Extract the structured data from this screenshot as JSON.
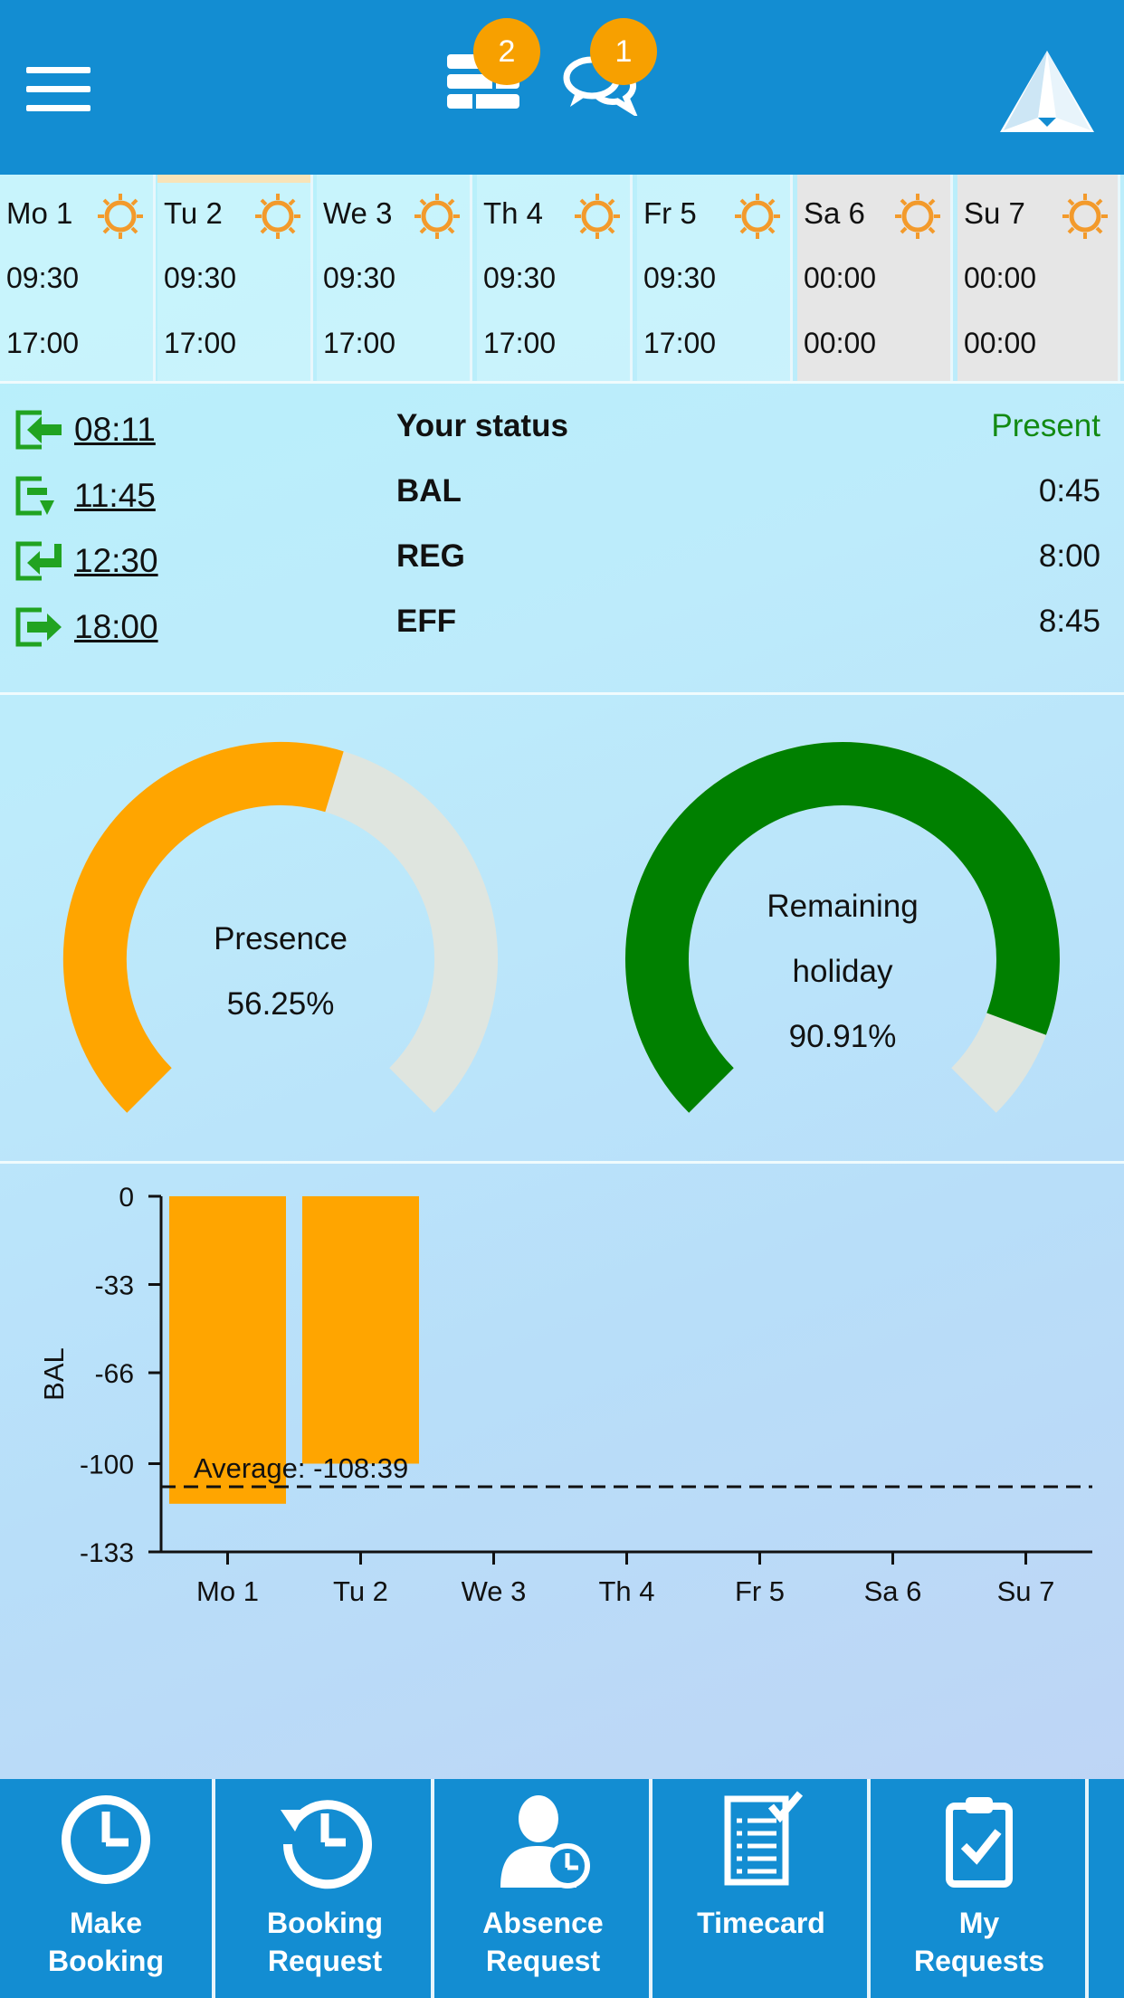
{
  "header": {
    "notifications_badge": "2",
    "messages_badge": "1"
  },
  "week": [
    {
      "name": "Mo 1",
      "start": "09:30",
      "end": "17:00",
      "weekend": false,
      "selected": false
    },
    {
      "name": "Tu 2",
      "start": "09:30",
      "end": "17:00",
      "weekend": false,
      "selected": true
    },
    {
      "name": "We 3",
      "start": "09:30",
      "end": "17:00",
      "weekend": false,
      "selected": false
    },
    {
      "name": "Th 4",
      "start": "09:30",
      "end": "17:00",
      "weekend": false,
      "selected": false
    },
    {
      "name": "Fr 5",
      "start": "09:30",
      "end": "17:00",
      "weekend": false,
      "selected": false
    },
    {
      "name": "Sa 6",
      "start": "00:00",
      "end": "00:00",
      "weekend": true,
      "selected": false
    },
    {
      "name": "Su 7",
      "start": "00:00",
      "end": "00:00",
      "weekend": true,
      "selected": false
    }
  ],
  "bookings": [
    {
      "time": "08:11",
      "icon": "clock-in-icon"
    },
    {
      "time": "11:45",
      "icon": "break-start-icon"
    },
    {
      "time": "12:30",
      "icon": "break-end-icon"
    },
    {
      "time": "18:00",
      "icon": "clock-out-icon"
    }
  ],
  "status": {
    "rows": [
      {
        "label": "Your status",
        "value": "Present"
      },
      {
        "label": "BAL",
        "value": "0:45"
      },
      {
        "label": "REG",
        "value": "8:00"
      },
      {
        "label": "EFF",
        "value": "8:45"
      }
    ]
  },
  "gauges": {
    "presence": {
      "line1": "Presence",
      "value_text": "56.25%",
      "fraction": 0.5625,
      "color": "#ffa500",
      "track": "#dfe5df"
    },
    "holiday": {
      "line1": "Remaining",
      "line2": "holiday",
      "value_text": "90.91%",
      "fraction": 0.9091,
      "color": "#008000",
      "track": "#dfe5df"
    }
  },
  "chart_data": {
    "type": "bar",
    "categories": [
      "Mo 1",
      "Tu 2",
      "We 3",
      "Th 4",
      "Fr 5",
      "Sa 6",
      "Su 7"
    ],
    "values": [
      -115,
      -100,
      null,
      null,
      null,
      null,
      null
    ],
    "ylabel": "BAL",
    "ylim": [
      -133,
      0
    ],
    "yticks": [
      "0",
      "-33",
      "-66",
      "-100",
      "-133"
    ],
    "ytick_values": [
      0,
      -33,
      -66,
      -100,
      -133
    ],
    "average": {
      "label": "Average: -108:39",
      "value": -108.65
    },
    "color": "#ffa500"
  },
  "nav": [
    {
      "line1": "Make",
      "line2": "Booking",
      "icon": "clock-icon"
    },
    {
      "line1": "Booking",
      "line2": "Request",
      "icon": "history-clock-icon"
    },
    {
      "line1": "Absence",
      "line2": "Request",
      "icon": "person-clock-icon"
    },
    {
      "line1": "Timecard",
      "line2": "",
      "icon": "timecard-icon"
    },
    {
      "line1": "My",
      "line2": "Requests",
      "icon": "clipboard-check-icon"
    }
  ]
}
